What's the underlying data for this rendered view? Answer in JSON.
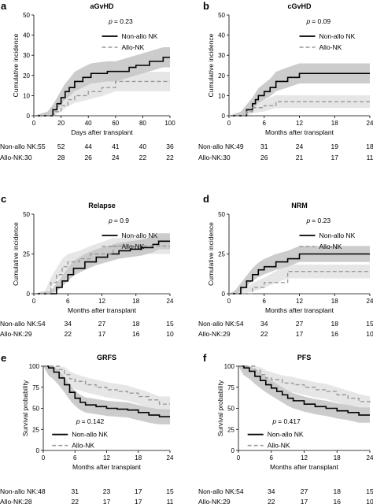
{
  "chart_data": [
    {
      "panel": "a",
      "type": "line",
      "title": "aGvHD",
      "pvalue": "= 0.23",
      "xlabel": "Days after transplant",
      "ylabel": "Cumulative incidence",
      "xlim": [
        0,
        100
      ],
      "ylim": [
        0,
        50
      ],
      "xticks": [
        "0",
        "20",
        "40",
        "60",
        "80",
        "100"
      ],
      "yticks": [
        "0",
        "10",
        "20",
        "30",
        "40",
        "50"
      ],
      "series": [
        {
          "name": "Non-allo NK",
          "color": "#000000",
          "dash": false,
          "band": true,
          "x": [
            0,
            10,
            14,
            17,
            20,
            23,
            26,
            30,
            36,
            42,
            54,
            60,
            70,
            75,
            85,
            95,
            100
          ],
          "y": [
            0,
            0,
            3,
            6,
            9,
            12,
            14,
            17,
            19,
            21,
            22,
            22,
            24,
            25,
            27,
            29,
            29
          ]
        },
        {
          "name": "Allo-NK",
          "color": "#999999",
          "dash": true,
          "band": true,
          "x": [
            0,
            10,
            15,
            20,
            25,
            30,
            40,
            50,
            60,
            70,
            100
          ],
          "y": [
            0,
            0,
            2,
            5,
            8,
            10,
            12,
            14,
            17,
            17,
            17
          ]
        }
      ],
      "risk_table": [
        {
          "label": "Non-allo NK:55",
          "values": [
            "52",
            "44",
            "41",
            "40",
            "36"
          ]
        },
        {
          "label": "Allo-NK:30",
          "values": [
            "28",
            "26",
            "24",
            "22",
            "22"
          ]
        }
      ]
    },
    {
      "panel": "b",
      "type": "line",
      "title": "cGvHD",
      "pvalue": "= 0.09",
      "xlabel": "Months after transplant",
      "ylabel": "Cumulative incidence",
      "xlim": [
        0,
        24
      ],
      "ylim": [
        0,
        50
      ],
      "xticks": [
        "0",
        "6",
        "12",
        "18",
        "24"
      ],
      "yticks": [
        "0",
        "10",
        "20",
        "30",
        "40",
        "50"
      ],
      "series": [
        {
          "name": "Non-allo NK",
          "color": "#000000",
          "dash": false,
          "band": true,
          "x": [
            0,
            2,
            3,
            4,
            4.5,
            5,
            6,
            7,
            8,
            10,
            12,
            24
          ],
          "y": [
            0,
            0,
            3,
            6,
            8,
            10,
            12,
            14,
            17,
            19,
            21,
            21
          ]
        },
        {
          "name": "Allo-NK",
          "color": "#999999",
          "dash": true,
          "band": true,
          "x": [
            0,
            2,
            3,
            4,
            6,
            8,
            24
          ],
          "y": [
            0,
            0,
            2,
            4,
            5,
            7,
            7
          ]
        }
      ],
      "risk_table": [
        {
          "label": "Non-allo NK:49",
          "values": [
            "31",
            "24",
            "19",
            "18"
          ]
        },
        {
          "label": "Allo-NK:30",
          "values": [
            "26",
            "21",
            "17",
            "11"
          ]
        }
      ]
    },
    {
      "panel": "c",
      "type": "line",
      "title": "Relapse",
      "pvalue": "= 0.9",
      "xlabel": "Months after transplant",
      "ylabel": "Cumulative incidence",
      "xlim": [
        0,
        24
      ],
      "ylim": [
        0,
        50
      ],
      "xticks": [
        "0",
        "6",
        "12",
        "18",
        "24"
      ],
      "yticks": [
        "0",
        "25",
        "50"
      ],
      "series": [
        {
          "name": "Non-allo NK",
          "color": "#000000",
          "dash": false,
          "band": true,
          "x": [
            0,
            3,
            4,
            5,
            6,
            7,
            9,
            11,
            13,
            15,
            17,
            19,
            21,
            22,
            24
          ],
          "y": [
            0,
            0,
            4,
            8,
            12,
            16,
            20,
            23,
            25,
            27,
            28,
            29,
            31,
            33,
            33
          ]
        },
        {
          "name": "Allo-NK",
          "color": "#999999",
          "dash": true,
          "band": true,
          "x": [
            0,
            2,
            3,
            4,
            5,
            6,
            8,
            10,
            14,
            24
          ],
          "y": [
            0,
            0,
            7,
            12,
            17,
            20,
            22,
            25,
            30,
            30
          ]
        }
      ],
      "risk_table": [
        {
          "label": "Non-allo NK:54",
          "values": [
            "34",
            "27",
            "18",
            "15"
          ]
        },
        {
          "label": "Allo-NK:29",
          "values": [
            "22",
            "17",
            "16",
            "10"
          ]
        }
      ]
    },
    {
      "panel": "d",
      "type": "line",
      "title": "NRM",
      "pvalue": "= 0.23",
      "xlabel": "Months after transplant",
      "ylabel": "Cumulative incidence",
      "xlim": [
        0,
        24
      ],
      "ylim": [
        0,
        50
      ],
      "xticks": [
        "0",
        "6",
        "12",
        "18",
        "24"
      ],
      "yticks": [
        "0",
        "25",
        "50"
      ],
      "series": [
        {
          "name": "Non-allo NK",
          "color": "#000000",
          "dash": false,
          "band": true,
          "x": [
            0,
            1,
            2,
            3,
            4,
            5,
            6,
            8,
            10,
            12,
            24
          ],
          "y": [
            0,
            0,
            4,
            8,
            12,
            15,
            17,
            20,
            22,
            25,
            25
          ]
        },
        {
          "name": "Allo-NK",
          "color": "#999999",
          "dash": true,
          "band": true,
          "x": [
            0,
            2,
            4,
            6,
            10,
            24
          ],
          "y": [
            0,
            0,
            4,
            7,
            14,
            14
          ]
        }
      ],
      "risk_table": [
        {
          "label": "Non-allo NK:54",
          "values": [
            "34",
            "27",
            "18",
            "15"
          ]
        },
        {
          "label": "Allo-NK:29",
          "values": [
            "22",
            "17",
            "16",
            "10"
          ]
        }
      ]
    },
    {
      "panel": "e",
      "type": "line",
      "title": "GRFS",
      "pvalue": "= 0.142",
      "xlabel": "Months after transplant",
      "ylabel": "Survival probability",
      "xlim": [
        0,
        24
      ],
      "ylim": [
        0,
        100
      ],
      "xticks": [
        "0",
        "6",
        "12",
        "18",
        "24"
      ],
      "yticks": [
        "0",
        "25",
        "50",
        "75",
        "100"
      ],
      "series": [
        {
          "name": "Non-allo NK",
          "color": "#000000",
          "dash": false,
          "band": true,
          "x": [
            0,
            1,
            2,
            3,
            4,
            5,
            6,
            7,
            8,
            10,
            12,
            14,
            16,
            18,
            20,
            22,
            24
          ],
          "y": [
            100,
            98,
            93,
            86,
            78,
            69,
            62,
            57,
            54,
            52,
            50,
            49,
            48,
            45,
            42,
            40,
            40
          ]
        },
        {
          "name": "Allo-NK",
          "color": "#999999",
          "dash": true,
          "band": true,
          "x": [
            0,
            2,
            3,
            4,
            5,
            6,
            8,
            10,
            12,
            14,
            16,
            18,
            20,
            22,
            24
          ],
          "y": [
            100,
            100,
            96,
            90,
            85,
            82,
            78,
            75,
            72,
            70,
            68,
            64,
            60,
            55,
            55
          ]
        }
      ],
      "risk_table": [
        {
          "label": "Non-allo NK:48",
          "values": [
            "31",
            "23",
            "17",
            "15"
          ]
        },
        {
          "label": "Allo-NK:28",
          "values": [
            "22",
            "17",
            "17",
            "11"
          ]
        }
      ]
    },
    {
      "panel": "f",
      "type": "line",
      "title": "PFS",
      "pvalue": "= 0.417",
      "xlabel": "Months after transplant",
      "ylabel": "Survival probability",
      "xlim": [
        0,
        24
      ],
      "ylim": [
        0,
        100
      ],
      "xticks": [
        "0",
        "6",
        "12",
        "18",
        "24"
      ],
      "yticks": [
        "0",
        "25",
        "50",
        "75",
        "100"
      ],
      "series": [
        {
          "name": "Non-allo NK",
          "color": "#000000",
          "dash": false,
          "band": true,
          "x": [
            0,
            1,
            2,
            3,
            4,
            5,
            6,
            7,
            8,
            9,
            10,
            12,
            14,
            16,
            18,
            20,
            22,
            24
          ],
          "y": [
            100,
            98,
            94,
            88,
            83,
            78,
            74,
            70,
            66,
            62,
            59,
            55,
            52,
            50,
            47,
            45,
            42,
            42
          ]
        },
        {
          "name": "Allo-NK",
          "color": "#999999",
          "dash": true,
          "band": true,
          "x": [
            0,
            2,
            3,
            4,
            5,
            6,
            8,
            10,
            12,
            14,
            16,
            18,
            20,
            22,
            24
          ],
          "y": [
            100,
            100,
            95,
            90,
            86,
            84,
            80,
            78,
            75,
            72,
            70,
            66,
            62,
            58,
            55
          ]
        }
      ],
      "risk_table": [
        {
          "label": "Non-allo NK:54",
          "values": [
            "34",
            "27",
            "18",
            "15"
          ]
        },
        {
          "label": "Allo-NK:29",
          "values": [
            "22",
            "17",
            "16",
            "10"
          ]
        }
      ]
    }
  ]
}
